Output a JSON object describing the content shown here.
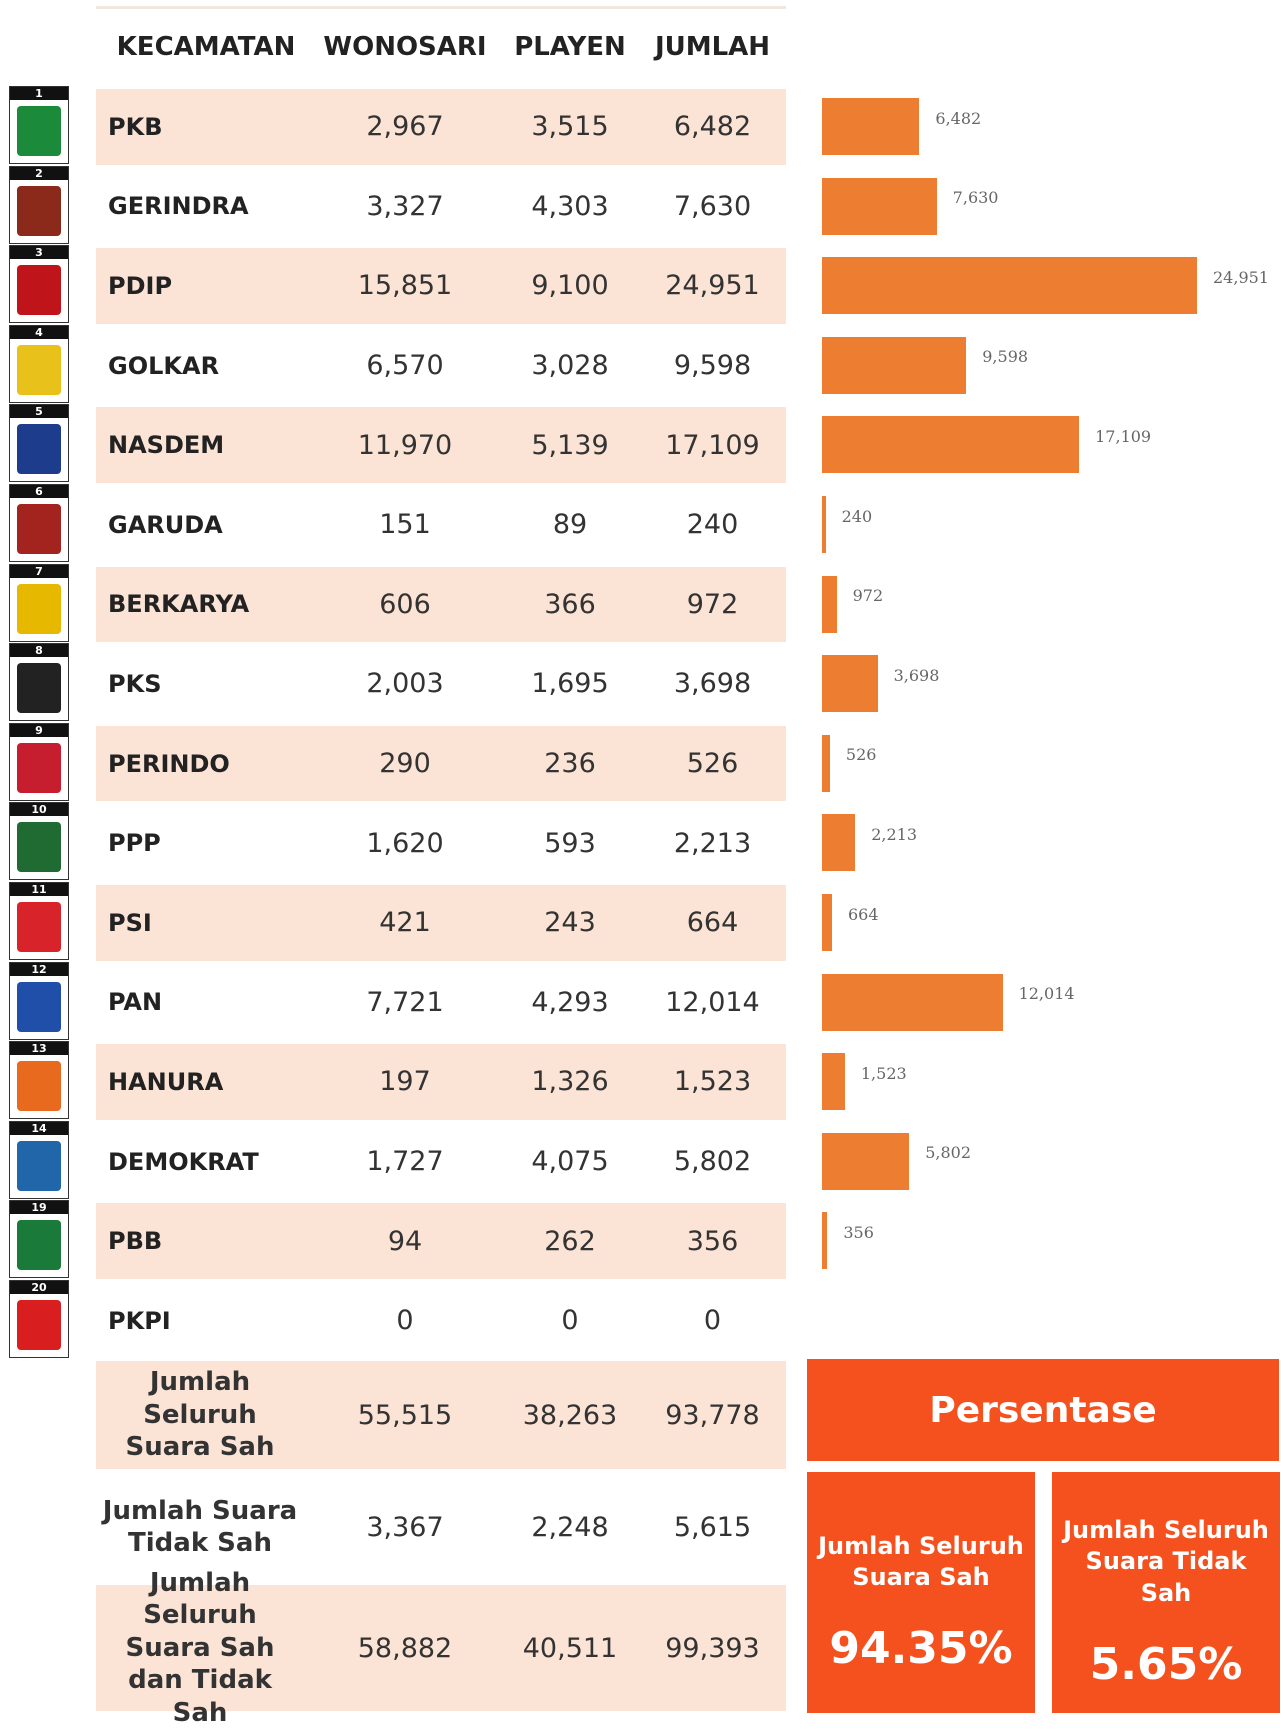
{
  "table": {
    "headers": [
      "KECAMATAN",
      "WONOSARI",
      "PLAYEN",
      "JUMLAH"
    ],
    "rows": [
      [
        "PKB",
        "2,967",
        "3,515",
        "6,482"
      ],
      [
        "GERINDRA",
        "3,327",
        "4,303",
        "7,630"
      ],
      [
        "PDIP",
        "15,851",
        "9,100",
        "24,951"
      ],
      [
        "GOLKAR",
        "6,570",
        "3,028",
        "9,598"
      ],
      [
        "NASDEM",
        "11,970",
        "5,139",
        "17,109"
      ],
      [
        "GARUDA",
        "151",
        "89",
        "240"
      ],
      [
        "BERKARYA",
        "606",
        "366",
        "972"
      ],
      [
        "PKS",
        "2,003",
        "1,695",
        "3,698"
      ],
      [
        "PERINDO",
        "290",
        "236",
        "526"
      ],
      [
        "PPP",
        "1,620",
        "593",
        "2,213"
      ],
      [
        "PSI",
        "421",
        "243",
        "664"
      ],
      [
        "PAN",
        "7,721",
        "4,293",
        "12,014"
      ],
      [
        "HANURA",
        "197",
        "1,326",
        "1,523"
      ],
      [
        "DEMOKRAT",
        "1,727",
        "4,075",
        "5,802"
      ],
      [
        "PBB",
        "94",
        "262",
        "356"
      ],
      [
        "PKPI",
        "0",
        "0",
        "0"
      ]
    ],
    "totals": [
      [
        "Jumlah Seluruh Suara Sah",
        "55,515",
        "38,263",
        "93,778"
      ],
      [
        "Jumlah Suara Tidak Sah",
        "3,367",
        "2,248",
        "5,615"
      ],
      [
        "Jumlah Seluruh Suara Sah dan Tidak Sah",
        "58,882",
        "40,511",
        "99,393"
      ]
    ]
  },
  "party_numbers": [
    "1",
    "2",
    "3",
    "4",
    "5",
    "6",
    "7",
    "8",
    "9",
    "10",
    "11",
    "12",
    "13",
    "14",
    "19",
    "20"
  ],
  "bars": {
    "values": [
      6482,
      7630,
      24951,
      9598,
      17109,
      240,
      972,
      3698,
      526,
      2213,
      664,
      12014,
      1523,
      5802,
      356
    ],
    "value_labels": [
      "6,482",
      "7,630",
      "24,951",
      "9,598",
      "17,109",
      "240",
      "972",
      "3,698",
      "526",
      "2,213",
      "664",
      "12,014",
      "1,523",
      "5,802",
      "356"
    ],
    "color": "#ed7d31"
  },
  "summary": {
    "title": "Persentase",
    "cards": [
      {
        "label": "Jumlah Seluruh Suara Sah",
        "value": "94.35%"
      },
      {
        "label": "Jumlah Seluruh Suara Tidak Sah",
        "value": "5.65%"
      }
    ]
  }
}
